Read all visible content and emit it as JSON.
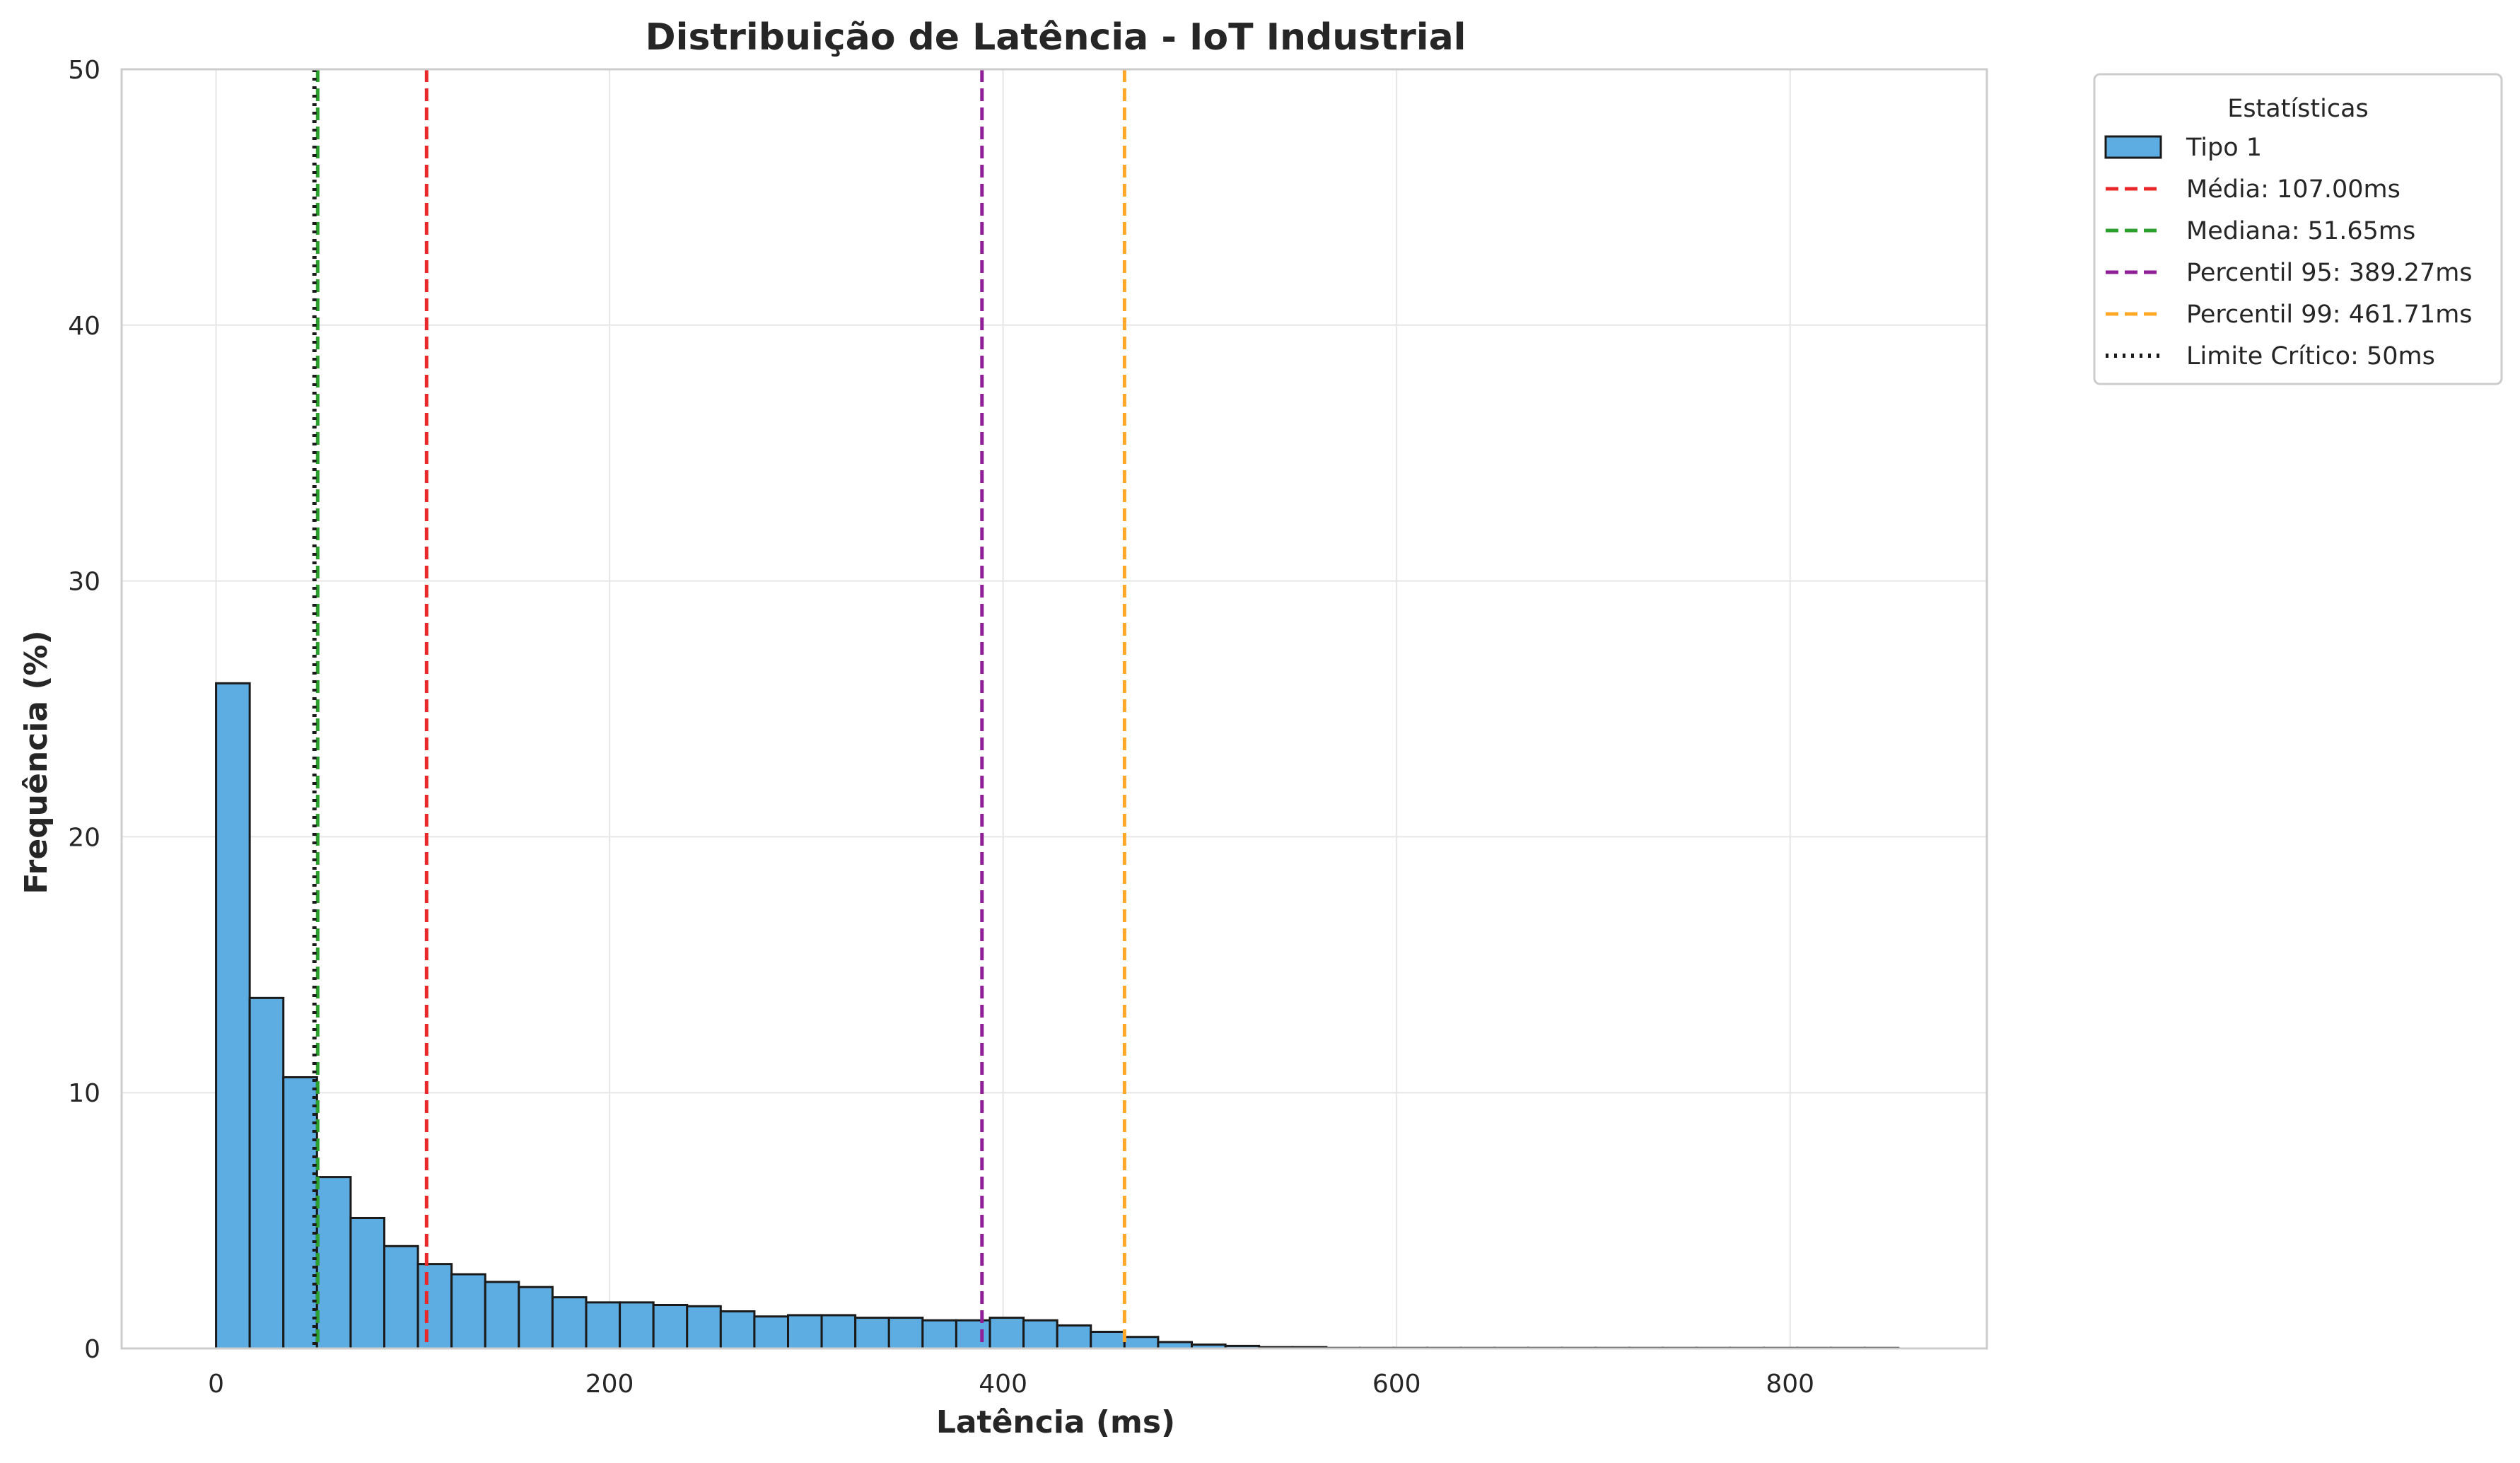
{
  "chart_data": {
    "type": "bar",
    "title": "Distribuição de Latência - IoT Industrial",
    "xlabel": "Latência (ms)",
    "ylabel": "Frequência (%)",
    "xlim": [
      -48,
      900
    ],
    "ylim": [
      0,
      50
    ],
    "x_ticks": [
      0,
      200,
      400,
      600,
      800
    ],
    "y_ticks": [
      0,
      10,
      20,
      30,
      40,
      50
    ],
    "grid": true,
    "legend_placement": "outside-top-right",
    "legend_title": "Estatísticas",
    "bin_width": 17.1,
    "bins_start": [
      0,
      17.1,
      34.2,
      51.3,
      68.4,
      85.5,
      102.6,
      119.7,
      136.8,
      153.9,
      171,
      188.1,
      205.2,
      222.3,
      239.4,
      256.5,
      273.6,
      290.7,
      307.8,
      324.9,
      342,
      359.1,
      376.2,
      393.3,
      410.4,
      427.5,
      444.6,
      461.7,
      478.8,
      495.9,
      513,
      530.1,
      547.2,
      564.3,
      581.4,
      598.5,
      615.6,
      632.7,
      649.8,
      666.9,
      684,
      701.1,
      718.2,
      735.3,
      752.4,
      769.5,
      786.6,
      803.7,
      820.8,
      837.9
    ],
    "values": [
      26.0,
      13.7,
      10.6,
      6.7,
      5.1,
      4.0,
      3.3,
      2.9,
      2.6,
      2.4,
      2.0,
      1.8,
      1.8,
      1.7,
      1.65,
      1.45,
      1.25,
      1.3,
      1.3,
      1.2,
      1.2,
      1.1,
      1.1,
      1.2,
      1.1,
      0.9,
      0.65,
      0.45,
      0.25,
      0.15,
      0.1,
      0.05,
      0.05,
      0.02,
      0.02,
      0.02,
      0.02,
      0.02,
      0.02,
      0.02,
      0.02,
      0.02,
      0.02,
      0.02,
      0.02,
      0.02,
      0.02,
      0.02,
      0.02,
      0.02
    ],
    "series": [
      {
        "name": "Tipo 1",
        "kind": "histogram",
        "color": "#5dade2",
        "edge_color": "#1a1a1a"
      }
    ],
    "reference_lines": [
      {
        "label": "Média: 107.00ms",
        "x": 107.0,
        "color": "#e8282b",
        "style": "dashed"
      },
      {
        "label": "Mediana: 51.65ms",
        "x": 51.65,
        "color": "#2ca02c",
        "style": "dashed"
      },
      {
        "label": "Percentil 95: 389.27ms",
        "x": 389.27,
        "color": "#8e1f96",
        "style": "dashed"
      },
      {
        "label": "Percentil 99: 461.71ms",
        "x": 461.71,
        "color": "#ffa726",
        "style": "dashed"
      },
      {
        "label": "Limite Crítico: 50ms",
        "x": 50,
        "color": "#1a1a1a",
        "style": "dotted"
      }
    ]
  }
}
